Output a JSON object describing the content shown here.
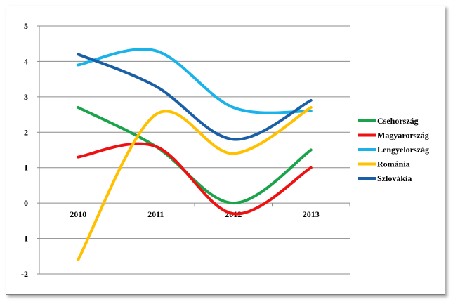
{
  "chart_data": {
    "type": "line",
    "smooth": true,
    "categories": [
      "2010",
      "2011",
      "2012",
      "2013"
    ],
    "ylim": [
      -2,
      5
    ],
    "yticks": [
      -2,
      -1,
      0,
      1,
      2,
      3,
      4,
      5
    ],
    "grid": true,
    "legend_position": "right",
    "series": [
      {
        "name": "Csehország",
        "color": "#1aa34a",
        "values": [
          2.7,
          1.6,
          0.0,
          1.5
        ]
      },
      {
        "name": "Magyarország",
        "color": "#ee1111",
        "values": [
          1.3,
          1.6,
          -0.3,
          1.0
        ]
      },
      {
        "name": "Lengyelország",
        "color": "#19b3ea",
        "values": [
          3.9,
          4.3,
          2.7,
          2.6
        ]
      },
      {
        "name": "Románia",
        "color": "#ffc000",
        "values": [
          -1.6,
          2.5,
          1.4,
          2.7
        ]
      },
      {
        "name": "Szlovákia",
        "color": "#1a5ea6",
        "values": [
          4.2,
          3.3,
          1.8,
          2.9
        ]
      }
    ]
  }
}
